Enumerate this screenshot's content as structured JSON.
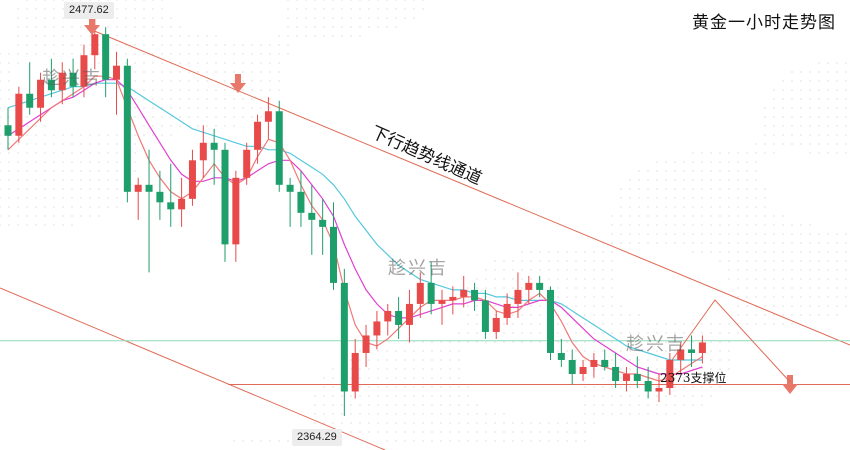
{
  "title": "黄金一小时走势图",
  "watermark": "趁兴吉",
  "annotations": {
    "channel_label": "下行趋势线通道",
    "support_label": "2373支撑位",
    "high_tag": "2477.62",
    "low_tag": "2364.29"
  },
  "colors": {
    "up": "#e84a4a",
    "down": "#1e9e6a",
    "ma_fast": "#f07878",
    "ma_mid": "#e040d0",
    "ma_slow": "#55c8dc",
    "trendline": "#e06a55",
    "current_line": "#8fdcb8",
    "arrow": "#e8786a"
  },
  "chart_data": {
    "type": "candlestick",
    "title": "黄金一小时走势图",
    "xlabel": "",
    "ylabel": "",
    "ylim": [
      2360,
      2480
    ],
    "series": [
      {
        "values": [
          [
            2447,
            2452,
            2440,
            2444
          ],
          [
            2444,
            2458,
            2442,
            2456
          ],
          [
            2456,
            2465,
            2450,
            2452
          ],
          [
            2452,
            2462,
            2448,
            2460
          ],
          [
            2460,
            2466,
            2455,
            2457
          ],
          [
            2457,
            2465,
            2453,
            2462
          ],
          [
            2462,
            2466,
            2455,
            2458
          ],
          [
            2458,
            2470,
            2455,
            2467
          ],
          [
            2467,
            2478,
            2463,
            2473
          ],
          [
            2473,
            2475,
            2455,
            2460
          ],
          [
            2460,
            2468,
            2450,
            2464
          ],
          [
            2464,
            2466,
            2425,
            2428
          ],
          [
            2428,
            2432,
            2420,
            2430
          ],
          [
            2430,
            2440,
            2405,
            2428
          ],
          [
            2428,
            2434,
            2420,
            2425
          ],
          [
            2425,
            2436,
            2418,
            2423
          ],
          [
            2423,
            2432,
            2418,
            2426
          ],
          [
            2426,
            2440,
            2424,
            2437
          ],
          [
            2437,
            2447,
            2432,
            2442
          ],
          [
            2442,
            2446,
            2430,
            2440
          ],
          [
            2440,
            2442,
            2408,
            2413
          ],
          [
            2413,
            2434,
            2408,
            2432
          ],
          [
            2432,
            2442,
            2430,
            2440
          ],
          [
            2440,
            2450,
            2436,
            2448
          ],
          [
            2448,
            2455,
            2443,
            2451
          ],
          [
            2451,
            2454,
            2428,
            2430
          ],
          [
            2430,
            2432,
            2418,
            2428
          ],
          [
            2428,
            2434,
            2418,
            2422
          ],
          [
            2422,
            2430,
            2410,
            2420
          ],
          [
            2420,
            2426,
            2410,
            2418
          ],
          [
            2418,
            2425,
            2400,
            2402
          ],
          [
            2402,
            2406,
            2364,
            2371
          ],
          [
            2371,
            2386,
            2369,
            2382
          ],
          [
            2382,
            2390,
            2378,
            2387
          ],
          [
            2387,
            2394,
            2383,
            2391
          ],
          [
            2391,
            2396,
            2387,
            2394
          ],
          [
            2394,
            2398,
            2386,
            2390
          ],
          [
            2390,
            2400,
            2385,
            2396
          ],
          [
            2396,
            2405,
            2392,
            2402
          ],
          [
            2402,
            2408,
            2393,
            2396
          ],
          [
            2396,
            2400,
            2390,
            2397
          ],
          [
            2397,
            2401,
            2393,
            2398
          ],
          [
            2398,
            2404,
            2395,
            2400
          ],
          [
            2400,
            2402,
            2394,
            2397
          ],
          [
            2397,
            2400,
            2386,
            2388
          ],
          [
            2388,
            2394,
            2386,
            2392
          ],
          [
            2392,
            2399,
            2390,
            2396
          ],
          [
            2396,
            2405,
            2392,
            2400
          ],
          [
            2400,
            2404,
            2396,
            2402
          ],
          [
            2402,
            2404,
            2398,
            2400
          ],
          [
            2400,
            2401,
            2380,
            2382
          ],
          [
            2382,
            2386,
            2378,
            2380
          ],
          [
            2380,
            2383,
            2373,
            2376
          ],
          [
            2376,
            2380,
            2374,
            2378
          ],
          [
            2378,
            2382,
            2375,
            2380
          ],
          [
            2380,
            2383,
            2377,
            2378
          ],
          [
            2378,
            2382,
            2372,
            2374
          ],
          [
            2374,
            2378,
            2371,
            2376
          ],
          [
            2376,
            2381,
            2372,
            2374
          ],
          [
            2374,
            2378,
            2369,
            2371
          ],
          [
            2371,
            2376,
            2368,
            2372
          ],
          [
            2372,
            2382,
            2370,
            2380
          ],
          [
            2380,
            2385,
            2376,
            2383
          ],
          [
            2383,
            2387,
            2378,
            2382
          ],
          [
            2382,
            2387,
            2379,
            2385
          ]
        ]
      }
    ],
    "ma_fast": [
      2440,
      2443,
      2446,
      2449,
      2452,
      2454,
      2456,
      2458,
      2461,
      2461,
      2460,
      2452,
      2444,
      2437,
      2432,
      2428,
      2426,
      2428,
      2432,
      2436,
      2432,
      2430,
      2432,
      2438,
      2443,
      2442,
      2437,
      2430,
      2424,
      2420,
      2413,
      2400,
      2390,
      2385,
      2384,
      2386,
      2389,
      2392,
      2395,
      2397,
      2397,
      2397,
      2398,
      2398,
      2397,
      2394,
      2393,
      2394,
      2397,
      2399,
      2396,
      2391,
      2385,
      2381,
      2379,
      2378,
      2377,
      2376,
      2376,
      2375,
      2374,
      2375,
      2377,
      2379,
      2381
    ],
    "ma_mid": [
      2444,
      2446,
      2448,
      2450,
      2452,
      2454,
      2455,
      2457,
      2459,
      2460,
      2460,
      2457,
      2452,
      2447,
      2442,
      2437,
      2433,
      2431,
      2431,
      2432,
      2432,
      2431,
      2432,
      2434,
      2436,
      2437,
      2437,
      2434,
      2430,
      2426,
      2421,
      2413,
      2406,
      2400,
      2396,
      2393,
      2392,
      2392,
      2393,
      2394,
      2395,
      2396,
      2396,
      2397,
      2397,
      2396,
      2395,
      2395,
      2396,
      2397,
      2397,
      2395,
      2392,
      2389,
      2386,
      2384,
      2382,
      2380,
      2378,
      2377,
      2376,
      2376,
      2376,
      2377,
      2378
    ],
    "ma_slow": [
      2452,
      2453,
      2454,
      2455,
      2456,
      2457,
      2458,
      2458,
      2459,
      2459,
      2459,
      2458,
      2456,
      2454,
      2452,
      2450,
      2448,
      2446,
      2445,
      2444,
      2443,
      2442,
      2441,
      2441,
      2440,
      2440,
      2439,
      2437,
      2435,
      2433,
      2430,
      2426,
      2421,
      2417,
      2413,
      2410,
      2407,
      2405,
      2403,
      2402,
      2401,
      2400,
      2400,
      2399,
      2399,
      2398,
      2398,
      2397,
      2397,
      2397,
      2397,
      2396,
      2394,
      2392,
      2390,
      2388,
      2386,
      2384,
      2383,
      2382,
      2381,
      2380,
      2380,
      2380,
      2380
    ]
  }
}
